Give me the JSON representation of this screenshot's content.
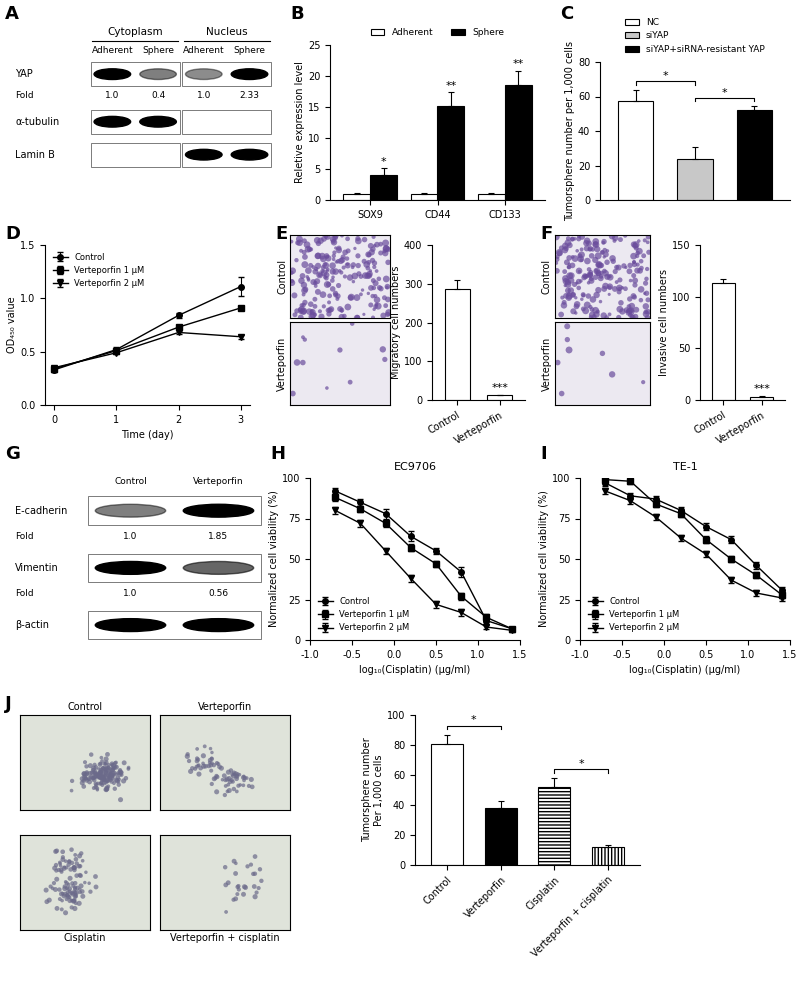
{
  "chart_data": [
    {
      "panel": "B",
      "type": "bar",
      "categories": [
        "SOX9",
        "CD44",
        "CD133"
      ],
      "series": [
        {
          "name": "Adherent",
          "color": "#ffffff",
          "values": [
            1,
            1,
            1
          ],
          "errors": [
            0.05,
            0.05,
            0.05
          ]
        },
        {
          "name": "Sphere",
          "color": "#000000",
          "values": [
            4.1,
            15.1,
            18.6
          ],
          "errors": [
            1.0,
            2.3,
            2.2
          ],
          "significance": [
            "*",
            "**",
            "**"
          ]
        }
      ],
      "ylabel": "Reletive expression level",
      "ylim": [
        0,
        25
      ],
      "yticks": [
        0,
        5,
        10,
        15,
        20,
        25
      ],
      "legend": "above"
    },
    {
      "panel": "C",
      "type": "bar",
      "categories": [
        "NC",
        "siYAP",
        "siYAP+siRNA-resistant YAP"
      ],
      "values": [
        57.5,
        24,
        52
      ],
      "errors": [
        6.5,
        7,
        2.5
      ],
      "colors": [
        "#ffffff",
        "#c8c8c8",
        "#000000"
      ],
      "ylabel": "Tumorsphere number per 1,000 cells",
      "ylim": [
        0,
        80
      ],
      "yticks": [
        0,
        20,
        40,
        60,
        80
      ],
      "legend": "above",
      "tick_labels": "y",
      "significance": [
        {
          "between": [
            "NC",
            "siYAP"
          ],
          "label": "*"
        },
        {
          "between": [
            "siYAP",
            "siYAP+siRNA-resistant YAP"
          ],
          "label": "*"
        }
      ]
    },
    {
      "panel": "D",
      "type": "line",
      "x": [
        0,
        1,
        2,
        3
      ],
      "xlabel": "Time (day)",
      "ylabel": "OD₄₅₀ value",
      "xlim": [
        -0.15,
        3.15
      ],
      "xticks": [
        0,
        1,
        2,
        3
      ],
      "ylim": [
        0,
        1.5
      ],
      "yticks": [
        {
          "value": 0,
          "label": "0.0"
        },
        0.5,
        {
          "value": 1,
          "label": "1.0"
        },
        1.5
      ],
      "series": [
        {
          "name": "Control",
          "color": "#000000",
          "marker": "circle",
          "line_style": "solid",
          "values": [
            0.33,
            0.52,
            0.84,
            1.11
          ],
          "errors": [
            0.02,
            0.02,
            0.02,
            0.09
          ]
        },
        {
          "name": "Verteporfin 1 µM",
          "color": "#000000",
          "marker": "square",
          "line_style": "solid",
          "values": [
            0.34,
            0.51,
            0.73,
            0.91
          ],
          "errors": [
            0.01,
            0.01,
            0.02,
            0.02
          ]
        },
        {
          "name": "Verteporfin 2 µM",
          "color": "#000000",
          "marker": "triangle_down",
          "line_style": "solid",
          "values": [
            0.35,
            0.49,
            0.68,
            0.64
          ],
          "errors": [
            0.01,
            0.01,
            0.01,
            0.02
          ]
        }
      ],
      "legend": "upper left"
    },
    {
      "panel": "E",
      "type": "bar",
      "image_labels": [
        "Control",
        "Verteporfin"
      ],
      "categories": [
        "Control",
        "Verteporfin"
      ],
      "values": [
        287,
        12
      ],
      "errors": [
        22,
        2
      ],
      "color": "#ffffff",
      "ylabel": "Migratory cell numbers",
      "ylim": [
        0,
        400
      ],
      "yticks": [
        0,
        100,
        200,
        300,
        400
      ],
      "significance": [
        {
          "category": "Verteporfin",
          "label": "***"
        }
      ]
    },
    {
      "panel": "F",
      "type": "bar",
      "image_labels": [
        "Control",
        "Verteporfin"
      ],
      "categories": [
        "Control",
        "Verteporfin"
      ],
      "values": [
        113,
        3
      ],
      "errors": [
        4,
        1
      ],
      "color": "#ffffff",
      "ylabel": "Invasive cell numbers",
      "ylim": [
        0,
        150
      ],
      "yticks": [
        0,
        50,
        100,
        150
      ],
      "significance": [
        {
          "category": "Verteporfin",
          "label": "***"
        }
      ]
    },
    {
      "panel": "H",
      "type": "line",
      "title": "EC9706",
      "x": [
        -0.7,
        -0.4,
        -0.1,
        0.2,
        0.5,
        0.8,
        1.1,
        1.4
      ],
      "xlabel": "log₁₀(Cisplatin) (μg/ml)",
      "ylabel": "Normalized cell viability (%)",
      "xlim": [
        -1.0,
        1.5
      ],
      "xticks": [
        {
          "value": -1,
          "label": "-1.0"
        },
        -0.5,
        {
          "value": 0,
          "label": "0.0"
        },
        0.5,
        {
          "value": 1,
          "label": "1.0"
        },
        1.5
      ],
      "ylim": [
        0,
        100
      ],
      "yticks": [
        0,
        25,
        50,
        75,
        100
      ],
      "series": [
        {
          "name": "Control",
          "color": "#000000",
          "marker": "circle",
          "line_style": "solid",
          "values": [
            92,
            85,
            78,
            64,
            55,
            42,
            12,
            7
          ],
          "errors": [
            2,
            2,
            3,
            3,
            2,
            3,
            2,
            1
          ]
        },
        {
          "name": "Verteporfin 1 µM",
          "color": "#000000",
          "marker": "square",
          "line_style": "solid",
          "values": [
            88,
            81,
            72,
            57,
            47,
            27,
            14,
            7
          ],
          "errors": [
            2,
            2,
            2,
            2,
            2,
            2,
            2,
            1
          ]
        },
        {
          "name": "Verteporfin 2 µM",
          "color": "#000000",
          "marker": "triangle_down",
          "line_style": "solid",
          "values": [
            80,
            72,
            55,
            38,
            22,
            17,
            8,
            6
          ],
          "errors": [
            2,
            2,
            2,
            2,
            2,
            2,
            1,
            1
          ]
        }
      ],
      "legend": "lower left"
    },
    {
      "panel": "I",
      "type": "line",
      "title": "TE-1",
      "x": [
        -0.7,
        -0.4,
        -0.1,
        0.2,
        0.5,
        0.8,
        1.1,
        1.4
      ],
      "xlabel": "log₁₀(Cisplatin) (μg/ml)",
      "ylabel": "Normalized cell viability (%)",
      "xlim": [
        -1.0,
        1.5
      ],
      "xticks": [
        {
          "value": -1,
          "label": "-1.0"
        },
        -0.5,
        {
          "value": 0,
          "label": "0.0"
        },
        0.5,
        {
          "value": 1,
          "label": "1.0"
        },
        1.5
      ],
      "ylim": [
        0,
        100
      ],
      "yticks": [
        0,
        25,
        50,
        75,
        100
      ],
      "series": [
        {
          "name": "Control",
          "color": "#000000",
          "marker": "circle",
          "line_style": "solid",
          "values": [
            97,
            89,
            87,
            80,
            70,
            62,
            46,
            31
          ],
          "errors": [
            2,
            2,
            2,
            2,
            2,
            2,
            2,
            2
          ]
        },
        {
          "name": "Verteporfin 1 µM",
          "color": "#000000",
          "marker": "square",
          "line_style": "solid",
          "values": [
            99,
            98,
            84,
            78,
            62,
            50,
            40,
            28
          ],
          "errors": [
            2,
            2,
            2,
            2,
            2,
            2,
            2,
            2
          ]
        },
        {
          "name": "Verteporfin 2 µM",
          "color": "#000000",
          "marker": "triangle_down",
          "line_style": "solid",
          "values": [
            92,
            86,
            76,
            63,
            53,
            37,
            29,
            26
          ],
          "errors": [
            2,
            2,
            2,
            2,
            2,
            2,
            2,
            2
          ]
        }
      ],
      "legend": "lower left"
    },
    {
      "panel": "J",
      "type": "bar",
      "image_labels": [
        "Control",
        "Verteporfin",
        "Cisplatin",
        "Verteporfin + cisplatin"
      ],
      "categories": [
        "Control",
        "Verteporfin",
        "Cisplatin",
        "Verteporfin + cisplatin"
      ],
      "values": [
        81,
        38,
        52,
        12
      ],
      "errors": [
        6,
        5,
        6,
        1.5
      ],
      "colors": [
        "#ffffff",
        "#000000",
        "#ffffff",
        "#ffffff"
      ],
      "ylabel": "Tumorsphere number\nPer 1,000 cells",
      "ylim": [
        0,
        100
      ],
      "yticks": [
        0,
        20,
        40,
        60,
        80,
        100
      ],
      "significance": [
        {
          "between": [
            "Control",
            "Verteporfin"
          ],
          "label": "*"
        },
        {
          "between": [
            "Cisplatin",
            "Verteporfin + cisplatin"
          ],
          "label": "*"
        }
      ]
    }
  ],
  "blots": [
    {
      "panel": "A",
      "groups": [
        {
          "name": "Cytoplasm",
          "lanes": [
            "Adherent",
            "Sphere"
          ]
        },
        {
          "name": "Nucleus",
          "lanes": [
            "Adherent",
            "Sphere"
          ]
        }
      ],
      "rows": [
        {
          "name": "YAP",
          "fold_label": "Fold",
          "fold": [
            "1.0",
            "0.4",
            "1.0",
            "2.33"
          ]
        },
        {
          "name": "α-tubulin"
        },
        {
          "name": "Lamin B"
        }
      ]
    },
    {
      "panel": "G",
      "lanes": [
        "Control",
        "Verteporfin"
      ],
      "rows": [
        {
          "name": "E-cadherin",
          "fold_label": "Fold",
          "fold": [
            "1.0",
            "1.85"
          ]
        },
        {
          "name": "Vimentin",
          "fold_label": "Fold",
          "fold": [
            "1.0",
            "0.56"
          ]
        },
        {
          "name": "β-actin"
        }
      ]
    }
  ]
}
